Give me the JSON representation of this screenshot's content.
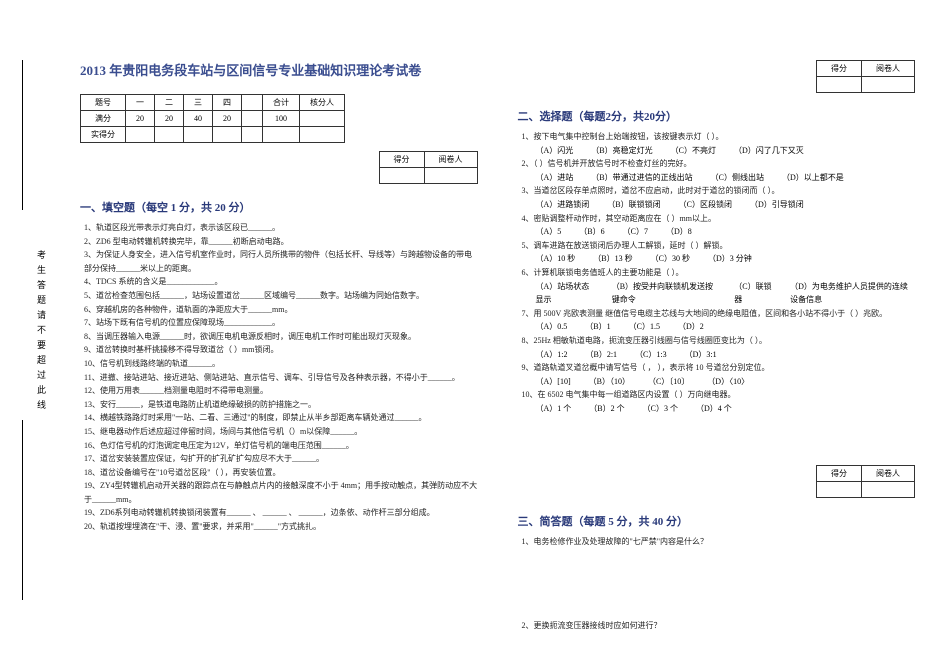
{
  "side_label": "考生答题请不要超过此线",
  "title": "2013 年贵阳电务段车站与区间信号专业基础知识理论考试卷",
  "score_table": {
    "headers": [
      "题号",
      "一",
      "二",
      "三",
      "四",
      "",
      "合计",
      "核分人"
    ],
    "rows": [
      [
        "满分",
        "20",
        "20",
        "40",
        "20",
        "",
        "100",
        ""
      ],
      [
        "实得分",
        "",
        "",
        "",
        "",
        "",
        "",
        ""
      ]
    ]
  },
  "score_box_headers": [
    "得分",
    "阅卷人"
  ],
  "section1": {
    "head": "一、填空题（每空 1 分，共 20 分）",
    "items": [
      "1、轨道区段光带表示灯亮白灯，表示该区段已______。",
      "2、ZD6 型电动转辙机转换完毕，靠______初断启动电路。",
      "3、为保证人身安全，进入信号机室作业时，同行人员所携带的物件（包括长杆、导线等）与跨越物设备的带电部分保持______米以上的距离。",
      "4、TDCS 系统的含义是____________。",
      "5、道岔检查范围包括______，站场设置道岔______区域编号______数字。站场编为同始信数字。",
      "6、穿越机房的各种物件，道轨面的净距应大于______mm。",
      "7、站场下既有信号机的位置应保障现场____________。",
      "8、当调压器输入电源______时，欲调压电机电源反相时，调压电机工作时可能出现灯灭现象。",
      "9、道岔转换时基杆挑操移不得导致道岔（   ）mm锁闭。",
      "10、信号机到线路终端的轨道______。",
      "11、进撤、接站进站、接近进站、侧站进站、直示信号、调车、引导信号及各种表示器，不得小于______。",
      "12、使用万用表______档测量电阻时不得带电测量。",
      "13、安行______，是铁道电路防止机道绝缘破损的防护措施之一。",
      "14、横越铁路路灯时采用\"一站、二看、三通过\"的制度，即禁止从半乡部距离车辆处通过______。",
      "15、继电器动作后述应超过停留时间，场间与其他信号机（）m以保障______。",
      "16、色灯信号机的灯泡调定电压定为12V，单灯信号机的端电压范围______。",
      "17、道岔安装装置应保证，勾扩开的扩孔矿扩勾应尽不大于______。",
      "18、道岔设备编号在\"10号道岔区段\"（   ），再安装位置。",
      "19、ZY4型转辙机启动开关器的跟踪点在与静触点片内的接触深度不小于 4mm；用手按动触点，其弹防动应不大于______mm。",
      "19、ZD6系列电动转辙机转换锁闭装置有______ 、 ______ 、 ______，边条依、动作杆三部分组成。",
      "20、轨道按埋埋滴在\"干、浸、置\"要求，并采用\"______\"方式挑扎。"
    ]
  },
  "section2": {
    "head": "二、选择题（每题2分，共20分）",
    "items": [
      {
        "q": "1、按下电气集中控制台上始端按钮，该按键表示灯（   ）。",
        "opts": [
          "（A）闪光",
          "（B）亮稳定灯光",
          "（C）不亮灯",
          "（D）闪了几下又灭"
        ]
      },
      {
        "q": "2、（   ）信号机并开放信号时不检查灯丝的完好。",
        "opts": [
          "（A）进站",
          "（B）带通过进信的正线出站",
          "（C）侧线出站",
          "（D）以上都不是"
        ]
      },
      {
        "q": "3、当道岔区段存单点照时，道岔不应启动，此时对于道岔的锁闭而（   ）。",
        "opts": [
          "（A）进路锁闭",
          "（B）联锁锁闭",
          "（C）区段锁闭",
          "（D）引导锁闭"
        ]
      },
      {
        "q": "4、密贴调整杆动作时，其空动距离应在（   ）mm以上。",
        "opts": [
          "（A）5",
          "（B）6",
          "（C）7",
          "（D）8"
        ]
      },
      {
        "q": "5、调车进路在放送锁闭后办理人工解锁，延时（   ）解锁。",
        "opts": [
          "（A）10 秒",
          "（B）13 秒",
          "（C）30 秒",
          "（D）3 分钟"
        ]
      },
      {
        "q": "6、计算机联锁电务值班人的主要功能是（   ）。",
        "opts": [
          "（A）站场状态显示",
          "（B）按受并向联锁机发送按键命令",
          "（C）联锁器",
          "（D）为电务维护人员提供的连续设备信息"
        ]
      },
      {
        "q": "7、用 500V 兆欧表测量 继值信号电缆主芯线与大地间的绝缘电阻值，区间和各小站不得小于（   ）兆欧。",
        "opts": [
          "（A）0.5",
          "（B）1",
          "（C）1.5",
          "（D）2"
        ]
      },
      {
        "q": "8、25Hz 相敏轨道电路，扼流变压器引线圈与信号线圈匝变比为（   ）。",
        "opts": [
          "（A）1:2",
          "（B）2:1",
          "（C）1:3",
          "（D）3:1"
        ]
      },
      {
        "q": "9、道路轨道叉道岔概中请写信号（   ，  ），表示将 10 号道岔分别定位。",
        "opts": [
          "（A）[10]",
          "（B）（10）",
          "（C）〔10〕",
          "（D）〈10〉"
        ]
      },
      {
        "q": "10、在 6502 电气集中每一组道路区内设置（   ）万向继电器。",
        "opts": [
          "（A）1 个",
          "（B）2 个",
          "（C）3 个",
          "（D）4 个"
        ]
      }
    ]
  },
  "section3": {
    "head": "三、简答题（每题 5 分，共 40 分）",
    "items": [
      "1、电务检修作业及处理故障的\"七严禁\"内容是什么？",
      "2、更换扼流变压器接线时应如何进行？"
    ]
  }
}
